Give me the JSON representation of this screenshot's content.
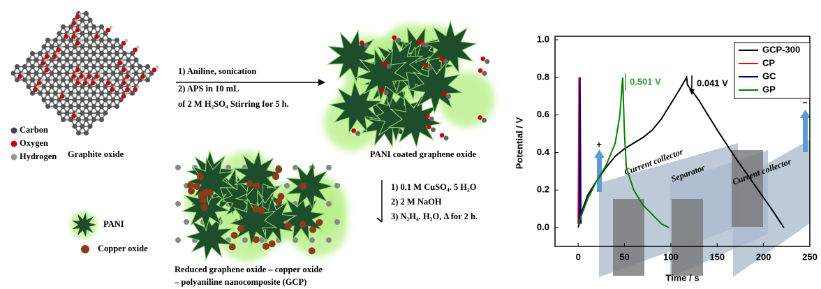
{
  "scheme": {
    "graphite_oxide": {
      "label": "Graphite oxide",
      "legend": [
        "Carbon",
        "Oxygen",
        "Hydrogen"
      ]
    },
    "step1": [
      "1) Aniline, sonication",
      "2) APS in 10 mL",
      "of 2 M H₂SO₄ Stirring for 5 h."
    ],
    "pani_go": {
      "label": "PANI coated graphene oxide"
    },
    "step2": [
      "1)  0.1 M CuSO₄. 5 H₂O",
      "2)  2 M NaOH",
      "3)  N₂H₄. H₂O, Δ for 2 h."
    ],
    "legend": [
      "PANI",
      "Copper oxide"
    ],
    "gcp": {
      "label": [
        "Reduced graphene oxide – copper oxide",
        "– polyaniline nanocomposite (GCP)"
      ]
    }
  },
  "chart_data": {
    "type": "line",
    "xlabel": "Time / s",
    "ylabel": "Potential / V",
    "xlim": [
      -25,
      250
    ],
    "ylim": [
      -0.1,
      1.0
    ],
    "xticks": [
      0,
      50,
      100,
      150,
      200,
      250
    ],
    "yticks": [
      {
        "value": 0,
        "label": "0.0"
      },
      0.2,
      0.4,
      0.6,
      0.8,
      {
        "value": 1,
        "label": "1.0"
      }
    ],
    "legend": "upper right",
    "series": [
      {
        "name": "GCP-300",
        "color": "#000000",
        "x": [
          0,
          5,
          10,
          20,
          30,
          40,
          50,
          60,
          70,
          80,
          90,
          100,
          110,
          117,
          118,
          130,
          150,
          170,
          190,
          210,
          222
        ],
        "values": [
          0,
          0.1,
          0.17,
          0.25,
          0.32,
          0.38,
          0.42,
          0.45,
          0.48,
          0.52,
          0.58,
          0.66,
          0.74,
          0.8,
          0.76,
          0.68,
          0.52,
          0.37,
          0.23,
          0.09,
          0
        ]
      },
      {
        "name": "CP",
        "color": "#ff0000",
        "x": [
          0,
          1,
          2
        ],
        "values": [
          0.02,
          0.8,
          0.05
        ]
      },
      {
        "name": "GC",
        "color": "#00008b",
        "x": [
          1,
          2,
          3
        ],
        "values": [
          0.02,
          0.8,
          0.02
        ]
      },
      {
        "name": "GP",
        "color": "#008000",
        "x": [
          0,
          10,
          20,
          30,
          40,
          45,
          48,
          50,
          52,
          60,
          70,
          80,
          90,
          98
        ],
        "values": [
          0.02,
          0.15,
          0.25,
          0.33,
          0.45,
          0.6,
          0.8,
          0.5,
          0.32,
          0.2,
          0.12,
          0.07,
          0.02,
          0
        ]
      }
    ],
    "annotations": [
      {
        "text": "0.501 V",
        "color": "#2e9a2e"
      },
      {
        "text": "0.041 V",
        "color": "#000000"
      }
    ],
    "overlay": [
      "Current collector",
      "Separator",
      "Current collector",
      "+",
      "−"
    ]
  }
}
